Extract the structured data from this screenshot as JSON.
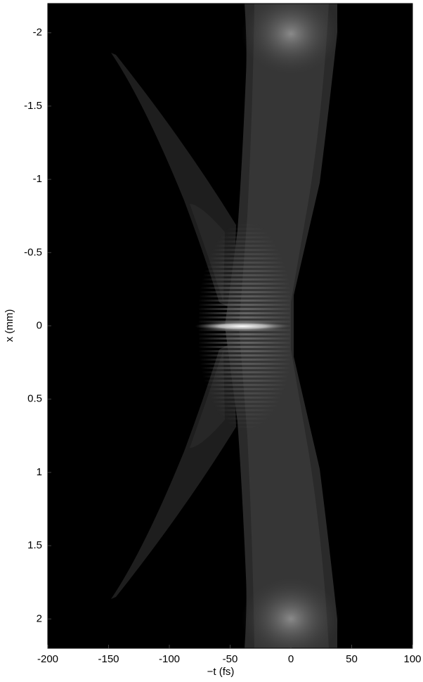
{
  "chart_data": {
    "type": "heatmap",
    "xlabel": "−t (fs)",
    "ylabel": "x (mm)",
    "xlim": [
      -200,
      100
    ],
    "xticks": [
      -200,
      -150,
      -100,
      -50,
      0,
      50,
      100
    ],
    "ylim": [
      -2.2,
      2.2
    ],
    "yticks": [
      -2,
      -1.5,
      -1,
      -0.5,
      0,
      0.5,
      1,
      1.5,
      2
    ],
    "yreverse": true
  }
}
